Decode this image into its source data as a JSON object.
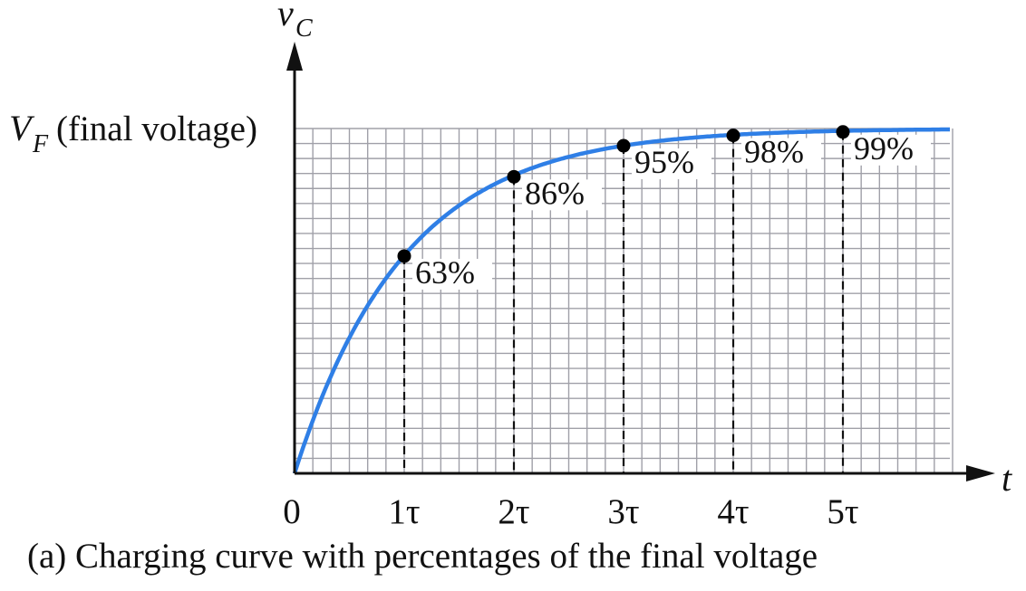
{
  "caption": "(a)  Charging curve with percentages of the final voltage",
  "chart_data": {
    "type": "line",
    "title": "",
    "xlabel": "t",
    "ylabel": "v",
    "ylabel_subscript": "C",
    "y_final_label": "V",
    "y_final_label_subscript": "F",
    "y_final_label_note": "(final voltage)",
    "origin_label": "0",
    "x_ticks": [
      {
        "value": 1,
        "label": "1τ"
      },
      {
        "value": 2,
        "label": "2τ"
      },
      {
        "value": 3,
        "label": "3τ"
      },
      {
        "value": 4,
        "label": "4τ"
      },
      {
        "value": 5,
        "label": "5τ"
      }
    ],
    "xlim": [
      0,
      6
    ],
    "ylim": [
      0,
      100
    ],
    "grid": true,
    "curve_color": "#2f7fe6",
    "grid_color": "#a0a0a8",
    "points": [
      {
        "x": 1,
        "y": 63,
        "label": "63%"
      },
      {
        "x": 2,
        "y": 86,
        "label": "86%"
      },
      {
        "x": 3,
        "y": 95,
        "label": "95%"
      },
      {
        "x": 4,
        "y": 98,
        "label": "98%"
      },
      {
        "x": 5,
        "y": 99,
        "label": "99%"
      }
    ]
  }
}
